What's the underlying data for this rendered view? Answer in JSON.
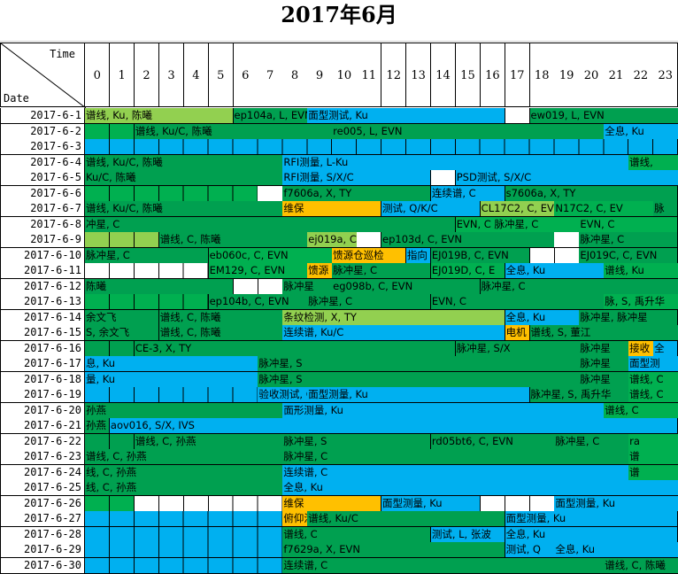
{
  "title": "2017年6月",
  "corner": {
    "time": "Time",
    "date": "Date"
  },
  "hours": [
    "0",
    "1",
    "2",
    "3",
    "4",
    "5",
    "6",
    "7",
    "8",
    "9",
    "10",
    "11",
    "12",
    "13",
    "14",
    "15",
    "16",
    "17",
    "18",
    "19",
    "20",
    "21",
    "22",
    "23"
  ],
  "colors": {
    "G": "#00b050",
    "D": "#00a050",
    "C": "#92d050",
    "B": "#00b0f0",
    "O": "#ffc000",
    "W": "#ffffff"
  },
  "rows": [
    {
      "date": "2017-6-1",
      "segs": [
        {
          "s": 0,
          "n": 6,
          "c": "C",
          "t": "谱线, Ku, 陈曦"
        },
        {
          "s": 6,
          "n": 3,
          "c": "D",
          "t": "ep104a, L, EVN"
        },
        {
          "s": 9,
          "n": 8,
          "c": "B",
          "t": "面型测试, Ku"
        },
        {
          "s": 17,
          "n": 1,
          "c": "W",
          "t": ""
        },
        {
          "s": 18,
          "n": 6,
          "c": "D",
          "t": "ew019, L, EVN"
        }
      ]
    },
    {
      "date": "2017-6-2",
      "segs": [
        {
          "s": 0,
          "n": 2,
          "c": "G",
          "t": ""
        },
        {
          "s": 2,
          "n": 8,
          "c": "D",
          "t": "谱线, Ku/C, 陈曦"
        },
        {
          "s": 10,
          "n": 11,
          "c": "D",
          "t": "re005, L, EVN"
        },
        {
          "s": 21,
          "n": 3,
          "c": "B",
          "t": "全息, Ku"
        }
      ]
    },
    {
      "date": "2017-6-3",
      "segs": [
        {
          "s": 0,
          "n": 24,
          "c": "B",
          "t": ""
        }
      ]
    },
    {
      "date": "2017-6-4",
      "segs": [
        {
          "s": 0,
          "n": 8,
          "c": "D",
          "t": "谱线, Ku/C, 陈曦"
        },
        {
          "s": 8,
          "n": 14,
          "c": "B",
          "t": "RFI测量, L-Ku"
        },
        {
          "s": 22,
          "n": 2,
          "c": "G",
          "t": "谱线,"
        }
      ]
    },
    {
      "date": "2017-6-5",
      "segs": [
        {
          "s": 0,
          "n": 8,
          "c": "D",
          "t": "Ku/C, 陈曦"
        },
        {
          "s": 8,
          "n": 6,
          "c": "B",
          "t": "RFI测量, S/X/C"
        },
        {
          "s": 14,
          "n": 1,
          "c": "W",
          "t": ""
        },
        {
          "s": 15,
          "n": 9,
          "c": "B",
          "t": "PSD测试, S/X/C"
        }
      ]
    },
    {
      "date": "2017-6-6",
      "segs": [
        {
          "s": 0,
          "n": 7,
          "c": "G",
          "t": ""
        },
        {
          "s": 7,
          "n": 1,
          "c": "W",
          "t": ""
        },
        {
          "s": 8,
          "n": 6,
          "c": "D",
          "t": "f7606a, X, TY"
        },
        {
          "s": 14,
          "n": 3,
          "c": "B",
          "t": "连续谱, C"
        },
        {
          "s": 17,
          "n": 7,
          "c": "D",
          "t": "s7606a, X, TY"
        }
      ]
    },
    {
      "date": "2017-6-7",
      "segs": [
        {
          "s": 0,
          "n": 8,
          "c": "D",
          "t": "谱线, Ku/C, 陈曦"
        },
        {
          "s": 8,
          "n": 4,
          "c": "O",
          "t": "维保"
        },
        {
          "s": 12,
          "n": 4,
          "c": "B",
          "t": "测试, Q/K/C"
        },
        {
          "s": 16,
          "n": 3,
          "c": "C",
          "t": "CL17C2, C, EVN"
        },
        {
          "s": 19,
          "n": 4,
          "c": "G",
          "t": "N17C2, C, EV"
        },
        {
          "s": 23,
          "n": 1,
          "c": "D",
          "t": "脉"
        }
      ]
    },
    {
      "date": "2017-6-8",
      "segs": [
        {
          "s": 0,
          "n": 15,
          "c": "D",
          "t": "冲星, C"
        },
        {
          "s": 15,
          "n": 5,
          "c": "G",
          "t": "EVN, C  脉冲星, C"
        },
        {
          "s": 20,
          "n": 4,
          "c": "G",
          "t": "EVN, C"
        }
      ]
    },
    {
      "date": "2017-6-9",
      "segs": [
        {
          "s": 0,
          "n": 3,
          "c": "C",
          "t": ""
        },
        {
          "s": 3,
          "n": 6,
          "c": "D",
          "t": "谱线, C, 陈曦"
        },
        {
          "s": 9,
          "n": 2,
          "c": "C",
          "t": "ej019a, C, E"
        },
        {
          "s": 11,
          "n": 1,
          "c": "W",
          "t": ""
        },
        {
          "s": 12,
          "n": 7,
          "c": "D",
          "t": "ep103d, C, EVN"
        },
        {
          "s": 19,
          "n": 1,
          "c": "W",
          "t": ""
        },
        {
          "s": 20,
          "n": 4,
          "c": "D",
          "t": "脉冲星, C"
        }
      ]
    },
    {
      "date": "2017-6-10",
      "segs": [
        {
          "s": 0,
          "n": 5,
          "c": "D",
          "t": "脉冲星, C"
        },
        {
          "s": 5,
          "n": 5,
          "c": "G",
          "t": "eb060c, C, EVN"
        },
        {
          "s": 10,
          "n": 3,
          "c": "O",
          "t": "馈源仓巡检"
        },
        {
          "s": 13,
          "n": 1,
          "c": "B",
          "t": "指向"
        },
        {
          "s": 14,
          "n": 4,
          "c": "D",
          "t": "EJ019B, C, EVN"
        },
        {
          "s": 18,
          "n": 2,
          "c": "W",
          "t": ""
        },
        {
          "s": 20,
          "n": 4,
          "c": "D",
          "t": "EJ019C, C, EVN"
        }
      ]
    },
    {
      "date": "2017-6-11",
      "segs": [
        {
          "s": 0,
          "n": 5,
          "c": "W",
          "t": ""
        },
        {
          "s": 5,
          "n": 4,
          "c": "G",
          "t": "EM129, C, EVN"
        },
        {
          "s": 9,
          "n": 1,
          "c": "O",
          "t": "馈源"
        },
        {
          "s": 10,
          "n": 4,
          "c": "D",
          "t": "脉冲星, C"
        },
        {
          "s": 14,
          "n": 3,
          "c": "G",
          "t": "EJ019D, C, E"
        },
        {
          "s": 17,
          "n": 4,
          "c": "B",
          "t": "全息, Ku"
        },
        {
          "s": 21,
          "n": 3,
          "c": "G",
          "t": "谱线, Ku"
        }
      ]
    },
    {
      "date": "2017-6-12",
      "segs": [
        {
          "s": 0,
          "n": 6,
          "c": "D",
          "t": "陈曦"
        },
        {
          "s": 6,
          "n": 2,
          "c": "W",
          "t": ""
        },
        {
          "s": 8,
          "n": 2,
          "c": "D",
          "t": "脉冲星"
        },
        {
          "s": 10,
          "n": 6,
          "c": "D",
          "t": "eg098b, C, EVN"
        },
        {
          "s": 16,
          "n": 8,
          "c": "D",
          "t": "脉冲星, C"
        }
      ]
    },
    {
      "date": "2017-6-13",
      "segs": [
        {
          "s": 0,
          "n": 5,
          "c": "G",
          "t": ""
        },
        {
          "s": 5,
          "n": 4,
          "c": "D",
          "t": "ep104b, C, EVN"
        },
        {
          "s": 9,
          "n": 5,
          "c": "D",
          "t": "脉冲星, C"
        },
        {
          "s": 14,
          "n": 7,
          "c": "D",
          "t": "EVN, C"
        },
        {
          "s": 21,
          "n": 3,
          "c": "G",
          "t": "脉, S, 禹升华"
        }
      ]
    },
    {
      "date": "2017-6-14",
      "segs": [
        {
          "s": 0,
          "n": 3,
          "c": "D",
          "t": "余文飞"
        },
        {
          "s": 3,
          "n": 5,
          "c": "D",
          "t": "谱线, C, 陈曦"
        },
        {
          "s": 8,
          "n": 9,
          "c": "C",
          "t": "条纹检测, X, TY"
        },
        {
          "s": 17,
          "n": 3,
          "c": "B",
          "t": "全息, Ku"
        },
        {
          "s": 20,
          "n": 4,
          "c": "D",
          "t": "脉冲星, 脉冲星"
        }
      ]
    },
    {
      "date": "2017-6-15",
      "segs": [
        {
          "s": 0,
          "n": 3,
          "c": "D",
          "t": "S, 余文飞"
        },
        {
          "s": 3,
          "n": 5,
          "c": "D",
          "t": "谱线, C, 陈曦"
        },
        {
          "s": 8,
          "n": 9,
          "c": "B",
          "t": "连续谱, Ku/C"
        },
        {
          "s": 17,
          "n": 1,
          "c": "O",
          "t": "电机"
        },
        {
          "s": 18,
          "n": 6,
          "c": "D",
          "t": "谱线, S, 董江"
        }
      ]
    },
    {
      "date": "2017-6-16",
      "segs": [
        {
          "s": 0,
          "n": 2,
          "c": "D",
          "t": ""
        },
        {
          "s": 2,
          "n": 13,
          "c": "D",
          "t": "CE-3, X, TY"
        },
        {
          "s": 15,
          "n": 5,
          "c": "D",
          "t": "脉冲星, S/X"
        },
        {
          "s": 20,
          "n": 2,
          "c": "D",
          "t": "脉冲星"
        },
        {
          "s": 22,
          "n": 1,
          "c": "O",
          "t": "接收"
        },
        {
          "s": 23,
          "n": 1,
          "c": "B",
          "t": "全"
        }
      ]
    },
    {
      "date": "2017-6-17",
      "segs": [
        {
          "s": 0,
          "n": 7,
          "c": "B",
          "t": "息, Ku"
        },
        {
          "s": 7,
          "n": 13,
          "c": "D",
          "t": "脉冲星, S"
        },
        {
          "s": 20,
          "n": 2,
          "c": "D",
          "t": "脉冲星"
        },
        {
          "s": 22,
          "n": 2,
          "c": "B",
          "t": "面型测"
        }
      ]
    },
    {
      "date": "2017-6-18",
      "segs": [
        {
          "s": 0,
          "n": 7,
          "c": "B",
          "t": "量, Ku"
        },
        {
          "s": 7,
          "n": 13,
          "c": "D",
          "t": "脉冲星, S"
        },
        {
          "s": 20,
          "n": 2,
          "c": "D",
          "t": "脉冲星"
        },
        {
          "s": 22,
          "n": 2,
          "c": "G",
          "t": "谱线, C"
        }
      ]
    },
    {
      "date": "2017-6-19",
      "segs": [
        {
          "s": 0,
          "n": 7,
          "c": "B",
          "t": ""
        },
        {
          "s": 7,
          "n": 2,
          "c": "B",
          "t": "验收测试, C"
        },
        {
          "s": 9,
          "n": 9,
          "c": "B",
          "t": "面型测量, Ku"
        },
        {
          "s": 18,
          "n": 4,
          "c": "D",
          "t": "脉冲星, S, 禹升华"
        },
        {
          "s": 22,
          "n": 2,
          "c": "G",
          "t": "谱线, C"
        }
      ]
    },
    {
      "date": "2017-6-20",
      "segs": [
        {
          "s": 0,
          "n": 8,
          "c": "D",
          "t": "孙燕"
        },
        {
          "s": 8,
          "n": 13,
          "c": "B",
          "t": "面形测量, Ku"
        },
        {
          "s": 21,
          "n": 3,
          "c": "G",
          "t": "谱线, C"
        }
      ]
    },
    {
      "date": "2017-6-21",
      "segs": [
        {
          "s": 0,
          "n": 1,
          "c": "D",
          "t": "孙燕"
        },
        {
          "s": 1,
          "n": 23,
          "c": "B",
          "t": "aov016, S/X, IVS"
        }
      ]
    },
    {
      "date": "2017-6-22",
      "segs": [
        {
          "s": 0,
          "n": 2,
          "c": "D",
          "t": ""
        },
        {
          "s": 2,
          "n": 6,
          "c": "D",
          "t": "谱线, C, 孙燕"
        },
        {
          "s": 8,
          "n": 6,
          "c": "D",
          "t": "脉冲星, S"
        },
        {
          "s": 14,
          "n": 5,
          "c": "D",
          "t": "rd05bt6, C, EVN"
        },
        {
          "s": 19,
          "n": 3,
          "c": "D",
          "t": "脉冲星, C"
        },
        {
          "s": 22,
          "n": 2,
          "c": "G",
          "t": "ra"
        }
      ]
    },
    {
      "date": "2017-6-23",
      "segs": [
        {
          "s": 0,
          "n": 8,
          "c": "D",
          "t": "谱线, C, 孙燕"
        },
        {
          "s": 8,
          "n": 14,
          "c": "D",
          "t": "脉冲星, C"
        },
        {
          "s": 22,
          "n": 2,
          "c": "G",
          "t": "谱"
        }
      ]
    },
    {
      "date": "2017-6-24",
      "segs": [
        {
          "s": 0,
          "n": 8,
          "c": "D",
          "t": "线, C, 孙燕"
        },
        {
          "s": 8,
          "n": 14,
          "c": "B",
          "t": "连续谱, C"
        },
        {
          "s": 22,
          "n": 2,
          "c": "G",
          "t": "谱"
        }
      ]
    },
    {
      "date": "2017-6-25",
      "segs": [
        {
          "s": 0,
          "n": 8,
          "c": "D",
          "t": "线, C, 孙燕"
        },
        {
          "s": 8,
          "n": 16,
          "c": "B",
          "t": "全息, Ku"
        }
      ]
    },
    {
      "date": "2017-6-26",
      "segs": [
        {
          "s": 0,
          "n": 2,
          "c": "G",
          "t": ""
        },
        {
          "s": 2,
          "n": 6,
          "c": "W",
          "t": ""
        },
        {
          "s": 8,
          "n": 4,
          "c": "O",
          "t": "维保"
        },
        {
          "s": 12,
          "n": 4,
          "c": "B",
          "t": "面型测量, Ku"
        },
        {
          "s": 16,
          "n": 3,
          "c": "W",
          "t": ""
        },
        {
          "s": 19,
          "n": 5,
          "c": "B",
          "t": "面型测量, Ku"
        }
      ]
    },
    {
      "date": "2017-6-27",
      "segs": [
        {
          "s": 0,
          "n": 8,
          "c": "B",
          "t": ""
        },
        {
          "s": 8,
          "n": 1,
          "c": "O",
          "t": "俯仰涂油"
        },
        {
          "s": 9,
          "n": 8,
          "c": "D",
          "t": "谱线, Ku/C"
        },
        {
          "s": 17,
          "n": 7,
          "c": "B",
          "t": "面型测量, Ku"
        }
      ]
    },
    {
      "date": "2017-6-28",
      "segs": [
        {
          "s": 0,
          "n": 8,
          "c": "B",
          "t": ""
        },
        {
          "s": 8,
          "n": 6,
          "c": "D",
          "t": "谱线, C"
        },
        {
          "s": 14,
          "n": 3,
          "c": "B",
          "t": "测试, L, 张波"
        },
        {
          "s": 17,
          "n": 7,
          "c": "B",
          "t": "全息, Ku"
        }
      ]
    },
    {
      "date": "2017-6-29",
      "segs": [
        {
          "s": 0,
          "n": 8,
          "c": "B",
          "t": ""
        },
        {
          "s": 8,
          "n": 9,
          "c": "D",
          "t": "f7629a, X, EVN"
        },
        {
          "s": 17,
          "n": 2,
          "c": "B",
          "t": "测试, Q"
        },
        {
          "s": 19,
          "n": 5,
          "c": "B",
          "t": "全息, Ku"
        }
      ]
    },
    {
      "date": "2017-6-30",
      "segs": [
        {
          "s": 0,
          "n": 8,
          "c": "B",
          "t": ""
        },
        {
          "s": 8,
          "n": 13,
          "c": "D",
          "t": "连续谱, C"
        },
        {
          "s": 21,
          "n": 3,
          "c": "D",
          "t": "谱线, C, 陈曦"
        }
      ]
    }
  ]
}
